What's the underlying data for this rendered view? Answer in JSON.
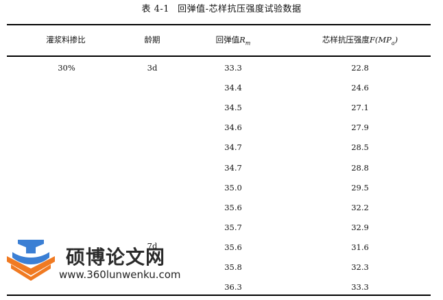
{
  "caption": {
    "number": "表 4-1",
    "title": "回弹值-芯样抗压强度试验数据"
  },
  "table": {
    "headers": {
      "ratio": "灌浆料掺比",
      "age": "龄期",
      "rebound_prefix": "回弹值",
      "rebound_symbol": "R",
      "rebound_sub": "m",
      "strength_prefix": "芯样抗压强度",
      "strength_symbol": "F(MP",
      "strength_sub": "a",
      "strength_suffix": ")"
    },
    "ratio_value": "30%",
    "age_values": [
      "3d",
      "7d"
    ],
    "rows": [
      {
        "rebound": "33.3",
        "strength": "22.8"
      },
      {
        "rebound": "34.4",
        "strength": "24.6"
      },
      {
        "rebound": "34.5",
        "strength": "27.1"
      },
      {
        "rebound": "34.6",
        "strength": "27.9"
      },
      {
        "rebound": "34.7",
        "strength": "28.5"
      },
      {
        "rebound": "34.7",
        "strength": "28.8"
      },
      {
        "rebound": "35.0",
        "strength": "29.5"
      },
      {
        "rebound": "35.6",
        "strength": "32.2"
      },
      {
        "rebound": "35.7",
        "strength": "32.9"
      },
      {
        "rebound": "35.6",
        "strength": "31.6"
      },
      {
        "rebound": "35.8",
        "strength": "32.3"
      },
      {
        "rebound": "36.3",
        "strength": "33.3"
      }
    ]
  },
  "watermark": {
    "name": "硕博论文网",
    "url": "www.360lunwenku.com",
    "icon": "graduation-cap-book-logo"
  },
  "colors": {
    "logo_blue": "#3b7fd4",
    "logo_orange": "#f07a22"
  }
}
